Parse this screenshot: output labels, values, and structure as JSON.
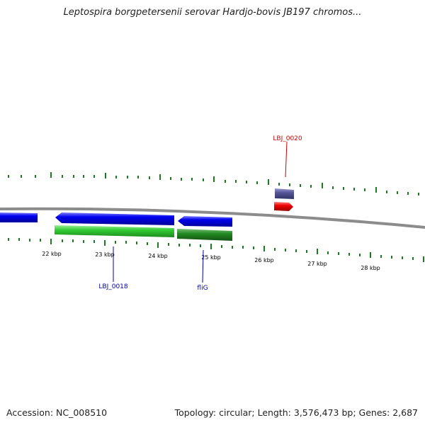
{
  "title": "Leptospira borgpetersenii serovar Hardjo-bovis JB197 chromos...",
  "footer": {
    "accession": "Accession: NC_008510",
    "summary": "Topology: circular; Length: 3,576,473 bp; Genes: 2,687"
  },
  "colors": {
    "backbone": "#8c8c8c",
    "forward_gene": "#0000ee",
    "green_feature": "#33cc33",
    "dark_green_feature": "#228b22",
    "purple_feature": "#555599",
    "red_feature": "#ee0000",
    "ticks": "#1e7a1e",
    "label_blue": "#0000aa",
    "label_red": "#cc0000"
  },
  "scale": {
    "unit": "kbp",
    "labels": [
      "22 kbp",
      "23 kbp",
      "24 kbp",
      "25 kbp",
      "26 kbp",
      "27 kbp",
      "28 kbp"
    ]
  },
  "gene_labels": [
    {
      "id": "lbj0018",
      "text": "LBJ_0018"
    },
    {
      "id": "flig",
      "text": "fliG"
    },
    {
      "id": "lbj0020",
      "text": "LBJ_0020"
    }
  ]
}
